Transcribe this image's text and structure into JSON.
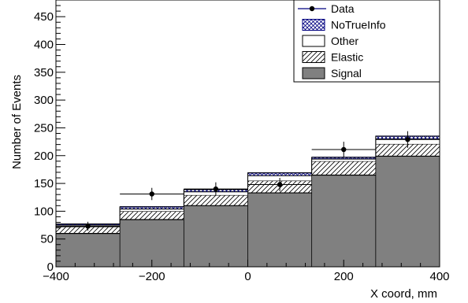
{
  "chart_data": {
    "type": "bar",
    "stacked": true,
    "xlabel": "X coord, mm",
    "ylabel": "Number of Events",
    "xlim": [
      -400,
      400
    ],
    "ylim": [
      0,
      480
    ],
    "x_ticks": [
      -400,
      -200,
      0,
      200,
      400
    ],
    "y_ticks": [
      0,
      50,
      100,
      150,
      200,
      250,
      300,
      350,
      400,
      450
    ],
    "bin_edges": [
      -400,
      -266.7,
      -133.3,
      0,
      133.3,
      266.7,
      400
    ],
    "legend_position": "top-right",
    "grid": false,
    "series": [
      {
        "name": "Signal",
        "style": "solid",
        "color": "#808080",
        "values": [
          60,
          85,
          110,
          133,
          165,
          199
        ]
      },
      {
        "name": "Elastic",
        "style": "hatch",
        "color": "#000000",
        "values": [
          12,
          15,
          19,
          22,
          25,
          22
        ]
      },
      {
        "name": "Other",
        "style": "open",
        "color": "#000000",
        "values": [
          3,
          4,
          6,
          9,
          4,
          9
        ]
      },
      {
        "name": "NoTrueInfo",
        "style": "crosshatch",
        "color": "#000080",
        "values": [
          2,
          4,
          4,
          5,
          3,
          5
        ]
      }
    ],
    "data_points": {
      "name": "Data",
      "x": [
        -333.3,
        -200,
        -66.7,
        66.7,
        200,
        333.3
      ],
      "y": [
        73,
        131,
        140,
        148,
        211,
        229
      ],
      "yerr": [
        8,
        11,
        12,
        12,
        14,
        15
      ]
    },
    "legend_entries": [
      {
        "label": "Data",
        "style": "marker"
      },
      {
        "label": "NoTrueInfo",
        "style": "crosshatch"
      },
      {
        "label": "Other",
        "style": "open"
      },
      {
        "label": "Elastic",
        "style": "hatch"
      },
      {
        "label": "Signal",
        "style": "solid"
      }
    ]
  }
}
